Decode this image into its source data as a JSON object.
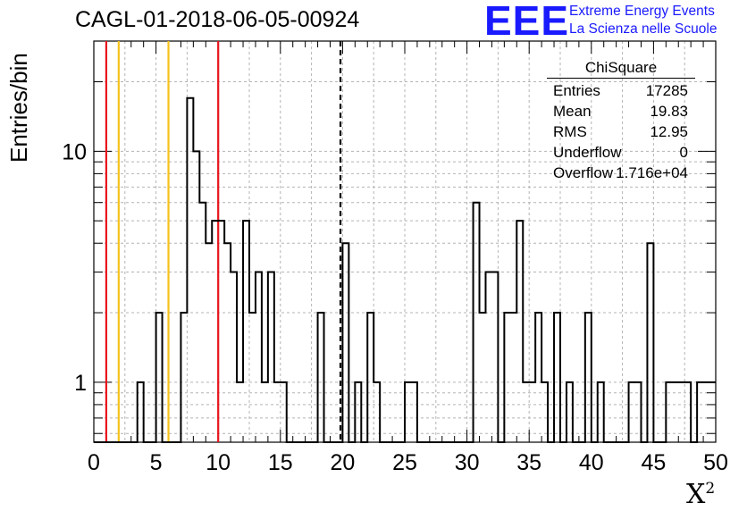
{
  "header": {
    "title": "CAGL-01-2018-06-05-00924",
    "logo_text": "EEE",
    "logo_line1": "Extreme Energy Events",
    "logo_line2": "La Scienza nelle Scuole"
  },
  "stats": {
    "title": "ChiSquare",
    "rows": [
      {
        "label": "Entries",
        "value": "17285"
      },
      {
        "label": "Mean",
        "value": "19.83"
      },
      {
        "label": "RMS",
        "value": "12.95"
      },
      {
        "label": "Underflow",
        "value": "0"
      },
      {
        "label": "Overflow",
        "value": "1.716e+04"
      }
    ]
  },
  "chart_data": {
    "type": "bar",
    "style": "step-histogram",
    "xlabel": "X",
    "xlabel_sup": "2",
    "ylabel": "Entries/bin",
    "xlim": [
      0,
      50
    ],
    "ylim": [
      0.55,
      30
    ],
    "yscale": "log",
    "grid": true,
    "bin_width": 0.5,
    "x_ticks": [
      "0",
      "5",
      "10",
      "15",
      "20",
      "25",
      "30",
      "35",
      "40",
      "45",
      "50"
    ],
    "y_ticks": [
      "1",
      "10"
    ],
    "bins": [
      {
        "x": 3.5,
        "y": 1
      },
      {
        "x": 5.0,
        "y": 2
      },
      {
        "x": 7.0,
        "y": 2
      },
      {
        "x": 7.5,
        "y": 17
      },
      {
        "x": 8.0,
        "y": 10
      },
      {
        "x": 8.5,
        "y": 6
      },
      {
        "x": 9.0,
        "y": 4
      },
      {
        "x": 9.5,
        "y": 5
      },
      {
        "x": 10.0,
        "y": 5
      },
      {
        "x": 10.5,
        "y": 4
      },
      {
        "x": 11.0,
        "y": 3
      },
      {
        "x": 11.5,
        "y": 1
      },
      {
        "x": 12.0,
        "y": 5
      },
      {
        "x": 12.5,
        "y": 2
      },
      {
        "x": 13.0,
        "y": 3
      },
      {
        "x": 13.5,
        "y": 1
      },
      {
        "x": 14.0,
        "y": 3
      },
      {
        "x": 14.5,
        "y": 1
      },
      {
        "x": 15.0,
        "y": 1
      },
      {
        "x": 18.0,
        "y": 2
      },
      {
        "x": 20.0,
        "y": 4
      },
      {
        "x": 21.0,
        "y": 1
      },
      {
        "x": 22.0,
        "y": 2
      },
      {
        "x": 22.5,
        "y": 1
      },
      {
        "x": 25.0,
        "y": 1
      },
      {
        "x": 25.5,
        "y": 1
      },
      {
        "x": 30.5,
        "y": 6
      },
      {
        "x": 31.0,
        "y": 2
      },
      {
        "x": 31.5,
        "y": 3
      },
      {
        "x": 32.0,
        "y": 3
      },
      {
        "x": 33.0,
        "y": 2
      },
      {
        "x": 33.5,
        "y": 2
      },
      {
        "x": 34.0,
        "y": 5
      },
      {
        "x": 34.5,
        "y": 1
      },
      {
        "x": 35.0,
        "y": 1
      },
      {
        "x": 35.5,
        "y": 2
      },
      {
        "x": 36.0,
        "y": 1
      },
      {
        "x": 37.0,
        "y": 2
      },
      {
        "x": 38.0,
        "y": 1
      },
      {
        "x": 39.5,
        "y": 2
      },
      {
        "x": 40.5,
        "y": 1
      },
      {
        "x": 43.0,
        "y": 1
      },
      {
        "x": 43.5,
        "y": 1
      },
      {
        "x": 44.5,
        "y": 4
      },
      {
        "x": 46.0,
        "y": 1
      },
      {
        "x": 46.5,
        "y": 1
      },
      {
        "x": 47.0,
        "y": 1
      },
      {
        "x": 47.5,
        "y": 1
      },
      {
        "x": 48.5,
        "y": 1
      },
      {
        "x": 49.0,
        "y": 1
      },
      {
        "x": 49.5,
        "y": 1
      }
    ],
    "reference_lines": [
      {
        "x": 1.0,
        "color": "#e8141c",
        "style": "solid"
      },
      {
        "x": 2.0,
        "color": "#f5c21a",
        "style": "solid"
      },
      {
        "x": 6.0,
        "color": "#f5c21a",
        "style": "solid"
      },
      {
        "x": 10.0,
        "color": "#e8141c",
        "style": "solid"
      },
      {
        "x": 19.83,
        "color": "#000000",
        "style": "dashed"
      }
    ]
  }
}
